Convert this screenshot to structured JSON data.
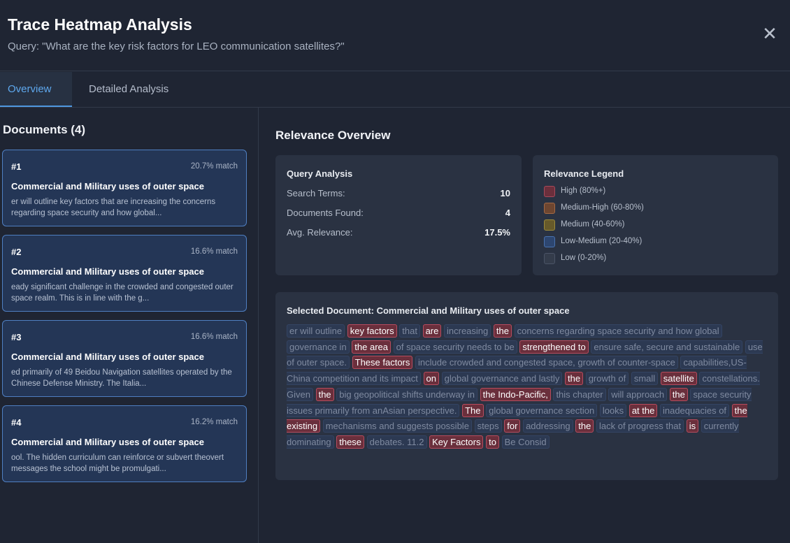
{
  "header": {
    "title": "Trace Heatmap Analysis",
    "subtitle": "Query: \"What are the key risk factors for LEO communication satellites?\"",
    "close_glyph": "✕"
  },
  "tabs": [
    {
      "label": "Overview",
      "active": true
    },
    {
      "label": "Detailed Analysis",
      "active": false
    }
  ],
  "documents": {
    "title": "Documents (4)",
    "items": [
      {
        "num": "#1",
        "match": "20.7% match",
        "title": "Commercial and Military uses of outer space",
        "excerpt": "er will outline key factors that are increasing the concerns regarding space security and how global..."
      },
      {
        "num": "#2",
        "match": "16.6% match",
        "title": "Commercial and Military uses of outer space",
        "excerpt": "eady significant challenge in the crowded and congested outer space realm. This is in line with the g..."
      },
      {
        "num": "#3",
        "match": "16.6% match",
        "title": "Commercial and Military uses of outer space",
        "excerpt": "ed primarily of 49 Beidou Navigation satellites operated by the Chinese Defense Ministry. The Italia..."
      },
      {
        "num": "#4",
        "match": "16.2% match",
        "title": "Commercial and Military uses of outer space",
        "excerpt": "ool. The hidden curriculum can reinforce or subvert theovert messages the school might be promulgati..."
      }
    ]
  },
  "overview": {
    "title": "Relevance Overview",
    "query_analysis": {
      "title": "Query Analysis",
      "rows": [
        {
          "label": "Search Terms:",
          "value": "10"
        },
        {
          "label": "Documents Found:",
          "value": "4"
        },
        {
          "label": "Avg. Relevance:",
          "value": "17.5%"
        }
      ]
    },
    "legend": {
      "title": "Relevance Legend",
      "items": [
        {
          "label": "High (80%+)",
          "color": "#6b2f3c",
          "border": "#a8495a"
        },
        {
          "label": "Medium-High (60-80%)",
          "color": "#6e4630",
          "border": "#a46a45"
        },
        {
          "label": "Medium (40-60%)",
          "color": "#675a2a",
          "border": "#9c8a3c"
        },
        {
          "label": "Low-Medium (20-40%)",
          "color": "#2d4670",
          "border": "#4872b0"
        },
        {
          "label": "Low (0-20%)",
          "color": "#343c4b",
          "border": "#4b5467"
        }
      ]
    },
    "selected": {
      "title": "Selected Document: Commercial and Military uses of outer space",
      "tokens": [
        {
          "t": "er will outline",
          "l": "low"
        },
        {
          "t": "key factors",
          "l": "high"
        },
        {
          "t": "that",
          "l": "low"
        },
        {
          "t": "are",
          "l": "high"
        },
        {
          "t": "increasing",
          "l": "low"
        },
        {
          "t": "the",
          "l": "high"
        },
        {
          "t": "concerns regarding space security and how global",
          "l": "low"
        },
        {
          "t": "governance in",
          "l": "low"
        },
        {
          "t": "the area",
          "l": "high"
        },
        {
          "t": "of space security needs to be",
          "l": "low"
        },
        {
          "t": "strengthened to",
          "l": "high"
        },
        {
          "t": "ensure safe, secure and sustainable",
          "l": "low"
        },
        {
          "t": "use of outer space.",
          "l": "low"
        },
        {
          "t": "These factors",
          "l": "high"
        },
        {
          "t": "include crowded and congested space, growth of counter-space",
          "l": "low"
        },
        {
          "t": "capabilities,US-China competition and its impact",
          "l": "low"
        },
        {
          "t": "on",
          "l": "high"
        },
        {
          "t": "global governance and lastly",
          "l": "low"
        },
        {
          "t": "the",
          "l": "high"
        },
        {
          "t": "growth of",
          "l": "low"
        },
        {
          "t": "small",
          "l": "low"
        },
        {
          "t": "satellite",
          "l": "high"
        },
        {
          "t": "constellations. Given",
          "l": "low"
        },
        {
          "t": "the",
          "l": "high"
        },
        {
          "t": "big geopolitical shifts underway in",
          "l": "low"
        },
        {
          "t": "the Indo-Pacific,",
          "l": "high"
        },
        {
          "t": "this chapter",
          "l": "low"
        },
        {
          "t": "will approach",
          "l": "low"
        },
        {
          "t": "the",
          "l": "high"
        },
        {
          "t": "space security issues primarily from anAsian perspective.",
          "l": "low"
        },
        {
          "t": "The",
          "l": "high"
        },
        {
          "t": "global governance section",
          "l": "low"
        },
        {
          "t": "looks",
          "l": "low"
        },
        {
          "t": "at the",
          "l": "high"
        },
        {
          "t": "inadequacies of",
          "l": "low"
        },
        {
          "t": "the existing",
          "l": "high"
        },
        {
          "t": "mechanisms and suggests possible",
          "l": "low"
        },
        {
          "t": "steps",
          "l": "low"
        },
        {
          "t": "for",
          "l": "high"
        },
        {
          "t": "addressing",
          "l": "low"
        },
        {
          "t": "the",
          "l": "high"
        },
        {
          "t": "lack of progress that",
          "l": "low"
        },
        {
          "t": "is",
          "l": "high"
        },
        {
          "t": "currently dominating",
          "l": "low"
        },
        {
          "t": "these",
          "l": "high"
        },
        {
          "t": "debates. 11.2",
          "l": "low"
        },
        {
          "t": "Key Factors",
          "l": "high"
        },
        {
          "t": "to",
          "l": "high"
        },
        {
          "t": "Be Consid",
          "l": "low"
        }
      ]
    }
  }
}
